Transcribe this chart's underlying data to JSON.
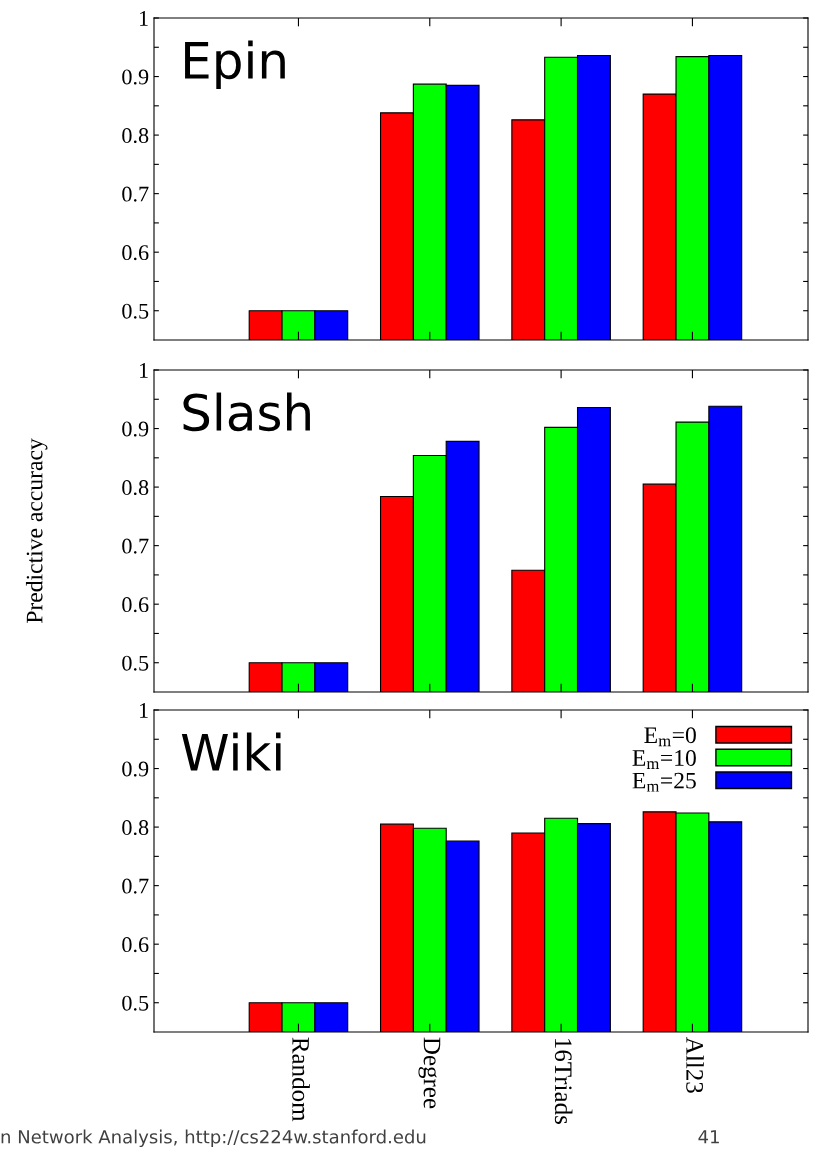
{
  "chart_data": [
    {
      "type": "bar",
      "title": "Epin",
      "categories": [
        null,
        null,
        null,
        null
      ],
      "series": [
        {
          "color": "#ff0000",
          "values": [
            0.5,
            0.838,
            0.826,
            0.87
          ]
        },
        {
          "color": "#00ff00",
          "values": [
            0.5,
            0.887,
            0.933,
            0.934
          ]
        },
        {
          "color": "#0000ff",
          "values": [
            0.5,
            0.885,
            0.936,
            0.936
          ]
        }
      ],
      "ylim": [
        0.45,
        1
      ],
      "yticks": [
        0.5,
        {
          "value": 0.55,
          "label": null
        },
        0.6,
        {
          "value": 0.65,
          "label": null
        },
        0.7,
        {
          "value": 0.75,
          "label": null
        },
        0.8,
        {
          "value": 0.85,
          "label": null
        },
        0.9,
        {
          "value": 0.95,
          "label": null
        },
        1
      ],
      "tick_labels": "y",
      "grid": false,
      "legend": false
    },
    {
      "type": "bar",
      "title": "Slash",
      "ylabel": "Predictive accuracy",
      "categories": [
        null,
        null,
        null,
        null
      ],
      "series": [
        {
          "color": "#ff0000",
          "values": [
            0.5,
            0.784,
            0.658,
            0.805
          ]
        },
        {
          "color": "#00ff00",
          "values": [
            0.5,
            0.854,
            0.902,
            0.911
          ]
        },
        {
          "color": "#0000ff",
          "values": [
            0.5,
            0.878,
            0.936,
            0.938
          ]
        }
      ],
      "ylim": [
        0.45,
        1
      ],
      "yticks": [
        0.5,
        {
          "value": 0.55,
          "label": null
        },
        0.6,
        {
          "value": 0.65,
          "label": null
        },
        0.7,
        {
          "value": 0.75,
          "label": null
        },
        0.8,
        {
          "value": 0.85,
          "label": null
        },
        0.9,
        {
          "value": 0.95,
          "label": null
        },
        1
      ],
      "tick_labels": "y",
      "grid": false,
      "legend": false
    },
    {
      "type": "bar",
      "title": "Wiki",
      "categories": [
        "Random",
        "Degree",
        "16Triads",
        "All23"
      ],
      "series": [
        {
          "name": "E$_{m}$=0",
          "color": "#ff0000",
          "values": [
            0.5,
            0.805,
            0.79,
            0.826
          ]
        },
        {
          "name": "E$_{m}$=10",
          "color": "#00ff00",
          "values": [
            0.5,
            0.798,
            0.815,
            0.824
          ]
        },
        {
          "name": "E$_{m}$=25",
          "color": "#0000ff",
          "values": [
            0.5,
            0.776,
            0.806,
            0.809
          ]
        }
      ],
      "ylim": [
        0.45,
        1
      ],
      "yticks": [
        0.5,
        {
          "value": 0.55,
          "label": null
        },
        0.6,
        {
          "value": 0.65,
          "label": null
        },
        0.7,
        {
          "value": 0.75,
          "label": null
        },
        0.8,
        {
          "value": 0.85,
          "label": null
        },
        0.9,
        {
          "value": 0.95,
          "label": null
        },
        1
      ],
      "grid": false,
      "legend": "top right",
      "annotations": [
        "n Network Analysis, http://cs224w.stanford.edu",
        "41"
      ]
    }
  ]
}
